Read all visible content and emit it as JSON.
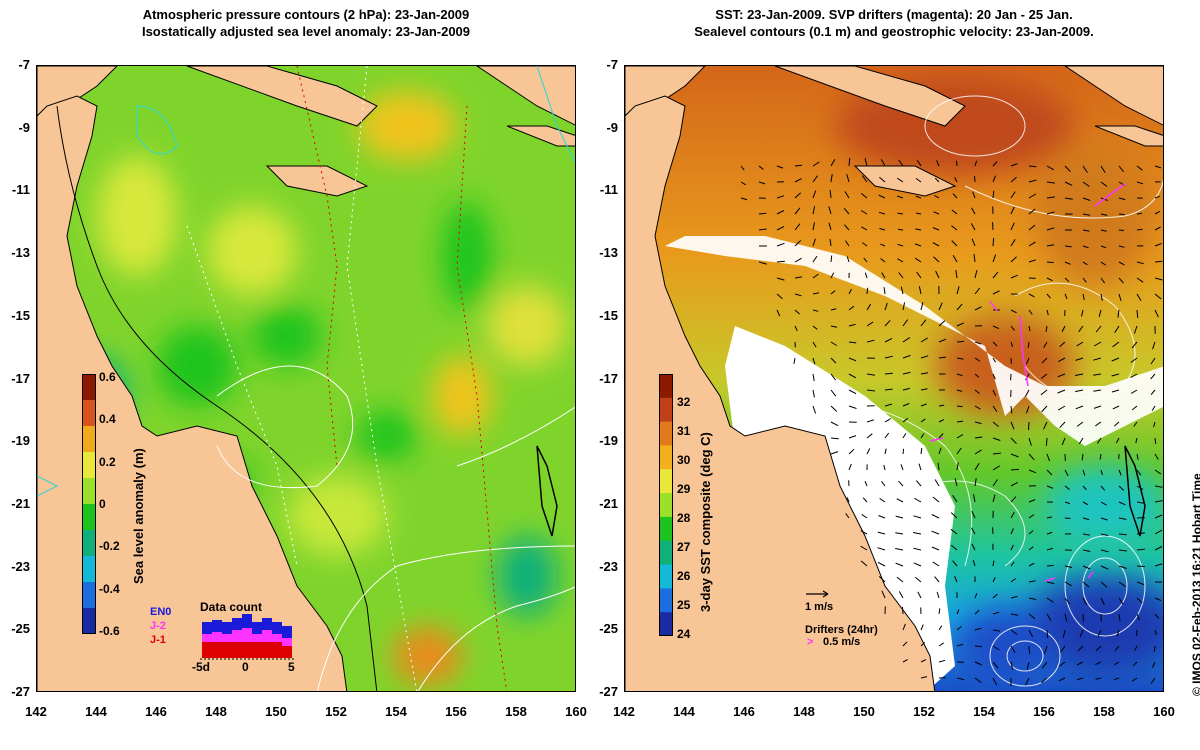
{
  "left_panel": {
    "title_line1": "Atmospheric pressure contours (2 hPa): 23-Jan-2009",
    "title_line2": "Isostatically adjusted sea level anomaly: 23-Jan-2009",
    "colorbar": {
      "label": "Sea level anomaly (m)",
      "ticks": [
        "0.6",
        "0.4",
        "0.2",
        "0",
        "-0.2",
        "-0.4",
        "-0.6"
      ],
      "colors": [
        "#8b1a00",
        "#d9541c",
        "#f2a81c",
        "#e8e83a",
        "#9be02a",
        "#1ec41e",
        "#0fb07a",
        "#14b8d8",
        "#1a6ee0",
        "#1a2aa0"
      ]
    },
    "data_count": {
      "title": "Data count",
      "legend": [
        "EN0",
        "J-2",
        "J-1"
      ],
      "legend_colors": [
        "#1a1ad8",
        "#ff33ff",
        "#dd0000"
      ],
      "axis_ticks": [
        "-5d",
        "0",
        "5"
      ]
    }
  },
  "right_panel": {
    "title_line1": "SST: 23-Jan-2009. SVP drifters (magenta): 20 Jan - 25 Jan.",
    "title_line2": "Sealevel contours (0.1 m) and geostrophic velocity: 23-Jan-2009.",
    "colorbar": {
      "label": "3-day SST composite (deg C)",
      "ticks": [
        "32",
        "31",
        "30",
        "29",
        "28",
        "27",
        "26",
        "25",
        "24"
      ],
      "colors": [
        "#8b1a00",
        "#c0401a",
        "#e07a1a",
        "#f2b01c",
        "#e8e83a",
        "#9be02a",
        "#1ec41e",
        "#0fb07a",
        "#14b8d8",
        "#1a6ee0",
        "#1a2aa0"
      ]
    },
    "velocity_key": "1 m/s",
    "drifter_key_title": "Drifters (24hr)",
    "drifter_key_speed": "0.5 m/s",
    "drifter_key_symbol": ">"
  },
  "axes": {
    "y_ticks": [
      "-7",
      "-9",
      "-11",
      "-13",
      "-15",
      "-17",
      "-19",
      "-21",
      "-23",
      "-25",
      "-27"
    ],
    "x_ticks": [
      "142",
      "144",
      "146",
      "148",
      "150",
      "152",
      "154",
      "156",
      "158",
      "160"
    ]
  },
  "credit": "© IMOS 02-Feb-2013 16:21 Hobart Time",
  "colors": {
    "land": "#f7c596",
    "ocean_left": "#78d62a",
    "ocean_right_warm": "#e8891c",
    "drifters": "#ff33ff"
  }
}
